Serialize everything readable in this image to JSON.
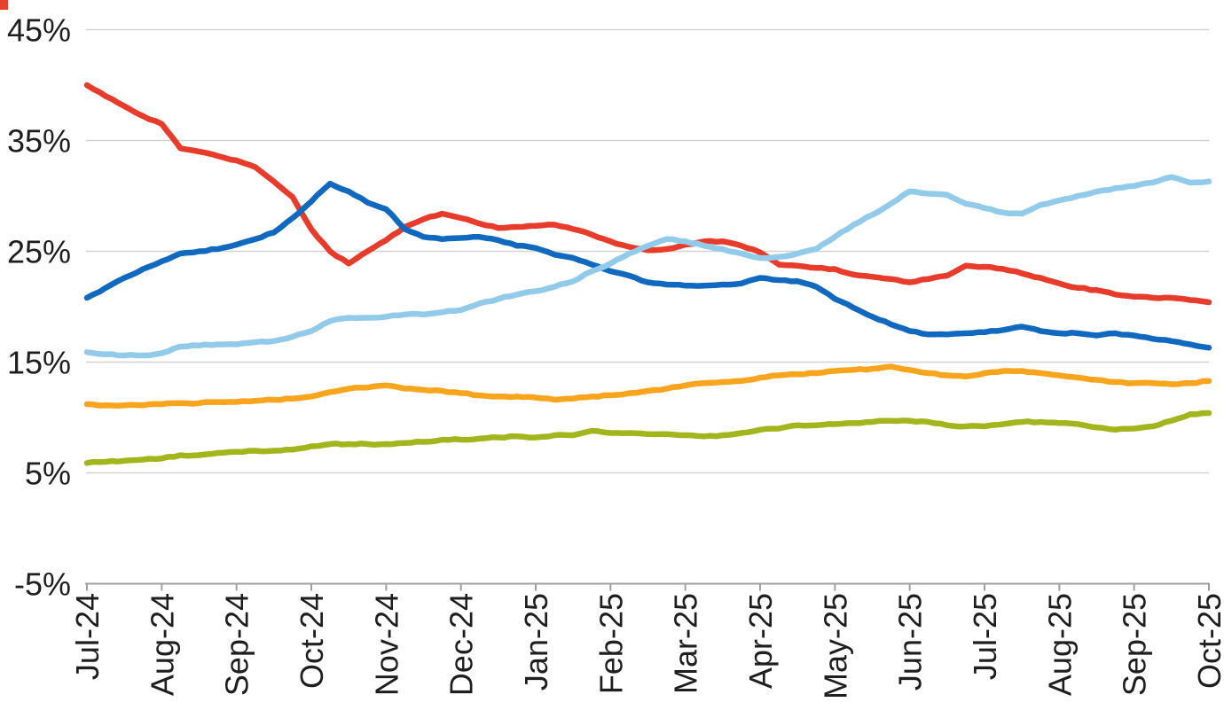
{
  "page": {
    "background": "#ffffff",
    "artifact": {
      "color": "#e8402c",
      "note": "small red fragment cropped at top-left corner"
    }
  },
  "chart_data": {
    "type": "line",
    "title": "",
    "xlabel": "",
    "ylabel": "",
    "legend": "none",
    "grid": "horizontal-only",
    "ylim": [
      -5,
      45
    ],
    "y_tick_labels": [
      "45%",
      "35%",
      "25%",
      "15%",
      "5%",
      "-5%"
    ],
    "y_tick_values": [
      45,
      35,
      25,
      15,
      5,
      -5
    ],
    "x_tick_labels": [
      "Jul-24",
      "Aug-24",
      "Sep-24",
      "Oct-24",
      "Nov-24",
      "Dec-24",
      "Jan-25",
      "Feb-25",
      "Mar-25",
      "Apr-25",
      "May-25",
      "Jun-25",
      "Jul-25",
      "Aug-25",
      "Sep-25",
      "Oct-25"
    ],
    "x_label_rotation_deg": -90,
    "samples_per_month": 4,
    "colors": {
      "gridline": "#d2d2d2",
      "axis": "#a0a0a0",
      "label": "#1e1e1e"
    },
    "series": [
      {
        "name": "red",
        "color": "#e73b2b",
        "values": [
          40.0,
          39.0,
          38.1,
          37.2,
          36.5,
          34.3,
          34.0,
          33.6,
          33.2,
          32.6,
          31.3,
          29.9,
          27.0,
          25.0,
          23.9,
          25.0,
          26.0,
          27.2,
          27.9,
          28.4,
          28.0,
          27.5,
          27.1,
          27.2,
          27.3,
          27.4,
          27.0,
          26.5,
          25.9,
          25.4,
          25.1,
          25.2,
          25.6,
          25.9,
          25.9,
          25.5,
          24.9,
          23.8,
          23.7,
          23.5,
          23.4,
          22.9,
          22.7,
          22.5,
          22.2,
          22.5,
          22.8,
          23.7,
          23.6,
          23.4,
          23.0,
          22.6,
          22.1,
          21.7,
          21.5,
          21.1,
          20.9,
          20.8,
          20.8,
          20.6,
          20.4
        ]
      },
      {
        "name": "dark-blue",
        "color": "#1069be",
        "values": [
          20.8,
          21.7,
          22.6,
          23.4,
          24.1,
          24.8,
          25.0,
          25.2,
          25.6,
          26.1,
          26.7,
          28.0,
          29.5,
          31.1,
          30.4,
          29.4,
          28.8,
          27.0,
          26.3,
          26.1,
          26.2,
          26.3,
          26.0,
          25.5,
          25.3,
          24.7,
          24.4,
          23.8,
          23.2,
          22.8,
          22.2,
          22.0,
          21.9,
          21.9,
          22.0,
          22.1,
          22.6,
          22.4,
          22.3,
          21.8,
          20.7,
          19.9,
          19.1,
          18.4,
          17.8,
          17.5,
          17.5,
          17.6,
          17.7,
          17.9,
          18.2,
          17.8,
          17.6,
          17.6,
          17.4,
          17.6,
          17.4,
          17.1,
          16.9,
          16.6,
          16.3
        ]
      },
      {
        "name": "orange",
        "color": "#f8a41d",
        "values": [
          11.2,
          11.1,
          11.1,
          11.1,
          11.2,
          11.3,
          11.3,
          11.4,
          11.4,
          11.5,
          11.6,
          11.7,
          11.9,
          12.3,
          12.6,
          12.7,
          12.9,
          12.6,
          12.5,
          12.4,
          12.2,
          12.0,
          11.9,
          11.9,
          11.8,
          11.6,
          11.7,
          11.9,
          12.0,
          12.2,
          12.4,
          12.6,
          12.9,
          13.1,
          13.2,
          13.3,
          13.6,
          13.8,
          13.9,
          14.0,
          14.2,
          14.3,
          14.4,
          14.6,
          14.3,
          14.0,
          13.8,
          13.7,
          14.0,
          14.2,
          14.2,
          14.0,
          13.8,
          13.6,
          13.4,
          13.2,
          13.1,
          13.1,
          13.0,
          13.1,
          13.3
        ]
      },
      {
        "name": "olive-green",
        "color": "#a3b51d",
        "values": [
          5.9,
          6.0,
          6.1,
          6.2,
          6.3,
          6.6,
          6.6,
          6.8,
          6.9,
          7.0,
          7.0,
          7.1,
          7.4,
          7.6,
          7.6,
          7.6,
          7.6,
          7.7,
          7.8,
          8.0,
          8.0,
          8.1,
          8.2,
          8.3,
          8.2,
          8.4,
          8.4,
          8.8,
          8.6,
          8.6,
          8.5,
          8.5,
          8.4,
          8.3,
          8.4,
          8.6,
          8.9,
          9.0,
          9.3,
          9.3,
          9.4,
          9.5,
          9.6,
          9.7,
          9.7,
          9.6,
          9.3,
          9.2,
          9.2,
          9.4,
          9.6,
          9.6,
          9.5,
          9.4,
          9.1,
          8.9,
          9.0,
          9.2,
          9.7,
          10.3,
          10.4
        ]
      },
      {
        "name": "light-blue",
        "color": "#92cbea",
        "values": [
          15.9,
          15.7,
          15.6,
          15.6,
          15.8,
          16.4,
          16.5,
          16.6,
          16.6,
          16.8,
          16.9,
          17.3,
          17.8,
          18.7,
          19.0,
          19.0,
          19.1,
          19.3,
          19.3,
          19.5,
          19.7,
          20.3,
          20.7,
          21.1,
          21.4,
          21.8,
          22.3,
          23.2,
          23.9,
          24.8,
          25.5,
          26.1,
          25.9,
          25.5,
          25.2,
          24.8,
          24.4,
          24.5,
          24.8,
          25.2,
          26.3,
          27.4,
          28.3,
          29.3,
          30.4,
          30.2,
          30.1,
          29.3,
          28.9,
          28.5,
          28.4,
          29.2,
          29.6,
          30.0,
          30.4,
          30.7,
          30.9,
          31.2,
          31.7,
          31.2,
          31.3
        ]
      }
    ]
  }
}
